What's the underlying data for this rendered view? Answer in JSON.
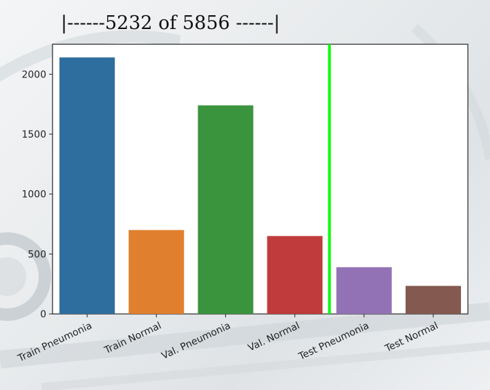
{
  "chart_data": {
    "type": "bar",
    "title": "|------5232 of 5856 ------|",
    "categories": [
      "Train Pneumonia",
      "Train Normal",
      "Val. Pneumonia",
      "Val. Normal",
      "Test Pneumonia",
      "Test Normal"
    ],
    "values": [
      2140,
      700,
      1740,
      650,
      390,
      234
    ],
    "colors": [
      "#2e6e9e",
      "#e0802f",
      "#3a943d",
      "#c03b3b",
      "#9272b4",
      "#84594f"
    ],
    "ylim": [
      0,
      2250
    ],
    "yticks": [
      0,
      500,
      1000,
      1500,
      2000
    ],
    "xlabel": "",
    "ylabel": "",
    "grid": false,
    "divider": {
      "after_category_index": 3,
      "color": "#00ff00"
    }
  }
}
